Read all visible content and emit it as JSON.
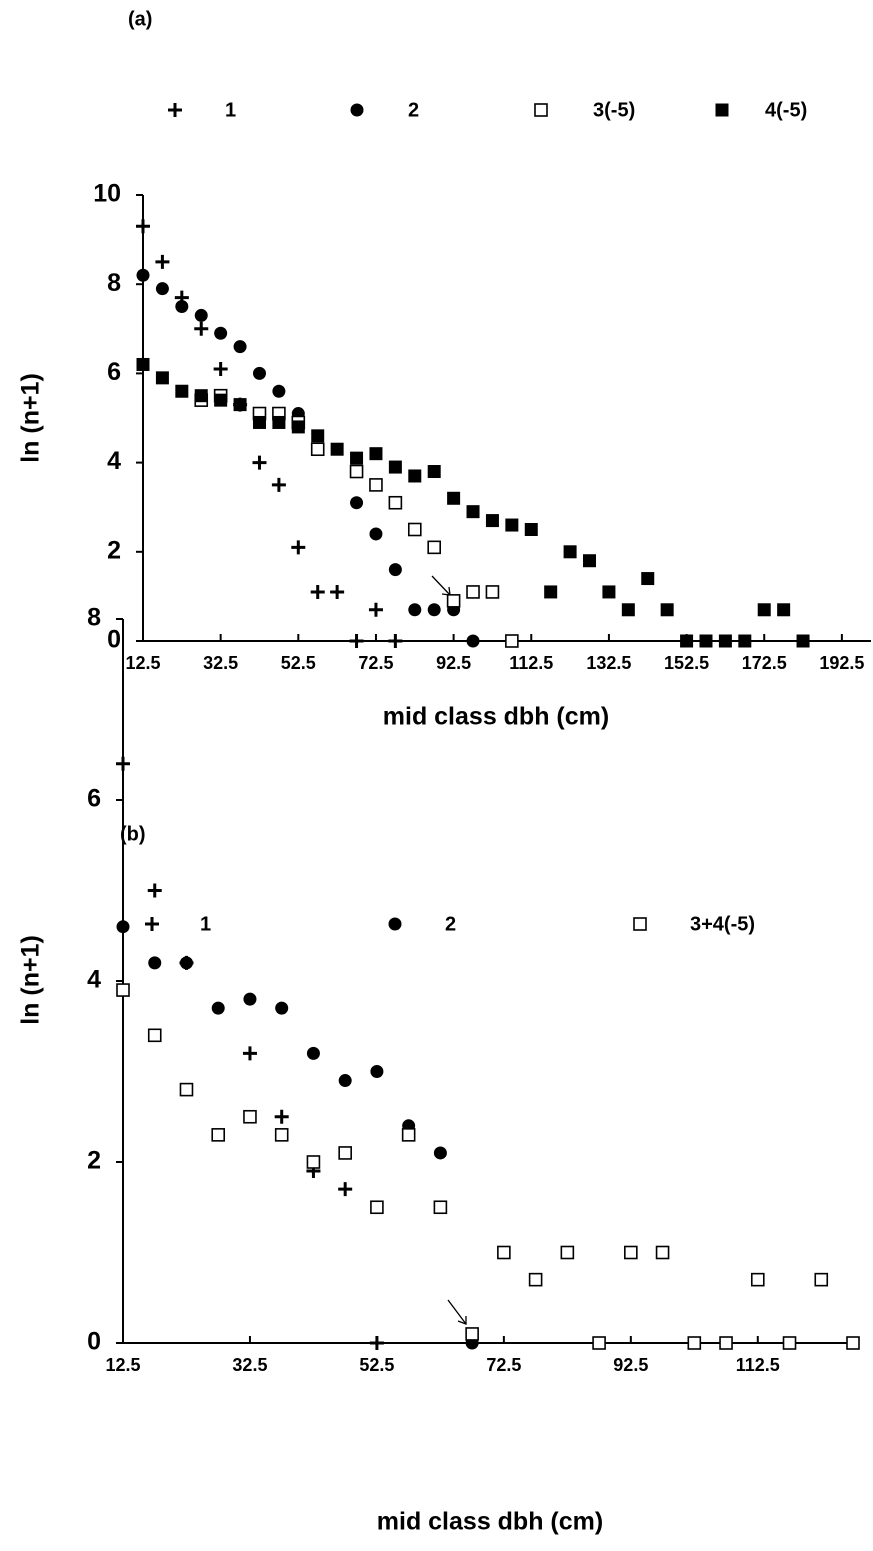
{
  "chart_data": [
    {
      "type": "scatter",
      "title": "(a)",
      "xlabel": "mid class dbh (cm)",
      "ylabel": "ln (n+1)",
      "xlim": [
        12.5,
        200
      ],
      "ylim": [
        0,
        10
      ],
      "xticks": [
        12.5,
        32.5,
        52.5,
        72.5,
        92.5,
        112.5,
        132.5,
        152.5,
        172.5,
        192.5
      ],
      "yticks": [
        0,
        2,
        4,
        6,
        8,
        10
      ],
      "series": [
        {
          "name": "1",
          "marker": "plus",
          "color": "#000000",
          "x": [
            12.5,
            17.5,
            22.5,
            27.5,
            32.5,
            37.5,
            42.5,
            47.5,
            52.5,
            57.5,
            62.5,
            67.5,
            72.5,
            77.5
          ],
          "values": [
            9.3,
            8.5,
            7.7,
            7.0,
            6.1,
            5.3,
            4.0,
            3.5,
            2.1,
            1.1,
            1.1,
            0,
            0.7,
            0
          ]
        },
        {
          "name": "2",
          "marker": "circle",
          "color": "#000000",
          "x": [
            12.5,
            17.5,
            22.5,
            27.5,
            32.5,
            37.5,
            42.5,
            47.5,
            52.5,
            67.5,
            72.5,
            77.5,
            82.5,
            87.5,
            92.5,
            97.5
          ],
          "values": [
            8.2,
            7.9,
            7.5,
            7.3,
            6.9,
            6.6,
            6.0,
            5.6,
            5.1,
            3.1,
            2.4,
            1.6,
            0.7,
            0.7,
            0.7,
            0
          ]
        },
        {
          "name": "3(-5)",
          "marker": "open-square",
          "color": "#000000",
          "x": [
            27.5,
            32.5,
            42.5,
            47.5,
            52.5,
            57.5,
            67.5,
            72.5,
            77.5,
            82.5,
            87.5,
            92.5,
            97.5,
            102.5,
            107.5
          ],
          "values": [
            5.4,
            5.5,
            5.1,
            5.1,
            4.9,
            4.3,
            3.8,
            3.5,
            3.1,
            2.5,
            2.1,
            0.9,
            1.1,
            1.1,
            0
          ]
        },
        {
          "name": "4(-5)",
          "marker": "filled-square",
          "color": "#000000",
          "x": [
            12.5,
            17.5,
            22.5,
            27.5,
            32.5,
            37.5,
            42.5,
            47.5,
            52.5,
            57.5,
            62.5,
            67.5,
            72.5,
            77.5,
            82.5,
            87.5,
            92.5,
            97.5,
            102.5,
            107.5,
            112.5,
            117.5,
            122.5,
            127.5,
            132.5,
            137.5,
            142.5,
            147.5,
            152.5,
            157.5,
            162.5,
            167.5,
            172.5,
            177.5,
            182.5
          ],
          "values": [
            6.2,
            5.9,
            5.6,
            5.5,
            5.4,
            5.3,
            4.9,
            4.9,
            4.8,
            4.6,
            4.3,
            4.1,
            4.2,
            3.9,
            3.7,
            3.8,
            3.2,
            2.9,
            2.7,
            2.6,
            2.5,
            1.1,
            2.0,
            1.8,
            1.1,
            0.7,
            1.4,
            0.7,
            0,
            0,
            0,
            0,
            0.7,
            0.7,
            0
          ]
        }
      ]
    },
    {
      "type": "scatter",
      "title": "(b)",
      "xlabel": "mid class dbh (cm)",
      "ylabel": "ln (n+1)",
      "xlim": [
        12.5,
        127.5
      ],
      "ylim": [
        0,
        8
      ],
      "xticks": [
        12.5,
        32.5,
        52.5,
        72.5,
        92.5,
        112.5
      ],
      "yticks": [
        0,
        2,
        4,
        6,
        8
      ],
      "series": [
        {
          "name": "1",
          "marker": "plus",
          "color": "#000000",
          "x": [
            12.5,
            17.5,
            22.5,
            32.5,
            37.5,
            42.5,
            47.5,
            52.5
          ],
          "values": [
            6.4,
            5.0,
            4.2,
            3.2,
            2.5,
            1.9,
            1.7,
            0
          ]
        },
        {
          "name": "2",
          "marker": "circle",
          "color": "#000000",
          "x": [
            12.5,
            17.5,
            22.5,
            27.5,
            32.5,
            37.5,
            42.5,
            47.5,
            52.5,
            57.5,
            62.5,
            67.5
          ],
          "values": [
            4.6,
            4.2,
            4.2,
            3.7,
            3.8,
            3.7,
            3.2,
            2.9,
            3.0,
            2.4,
            2.1,
            0
          ]
        },
        {
          "name": "3+4(-5)",
          "marker": "open-square",
          "color": "#000000",
          "x": [
            12.5,
            17.5,
            22.5,
            27.5,
            32.5,
            37.5,
            42.5,
            47.5,
            52.5,
            57.5,
            62.5,
            67.5,
            72.5,
            77.5,
            82.5,
            87.5,
            92.5,
            97.5,
            102.5,
            107.5,
            112.5,
            117.5,
            122.5,
            127.5
          ],
          "values": [
            3.9,
            3.4,
            2.8,
            2.3,
            2.5,
            2.3,
            2.0,
            2.1,
            1.5,
            2.3,
            1.5,
            0.1,
            1.0,
            0.7,
            1.0,
            0,
            1.0,
            1.0,
            0,
            0,
            0.7,
            0,
            0.7,
            0
          ]
        }
      ]
    }
  ]
}
